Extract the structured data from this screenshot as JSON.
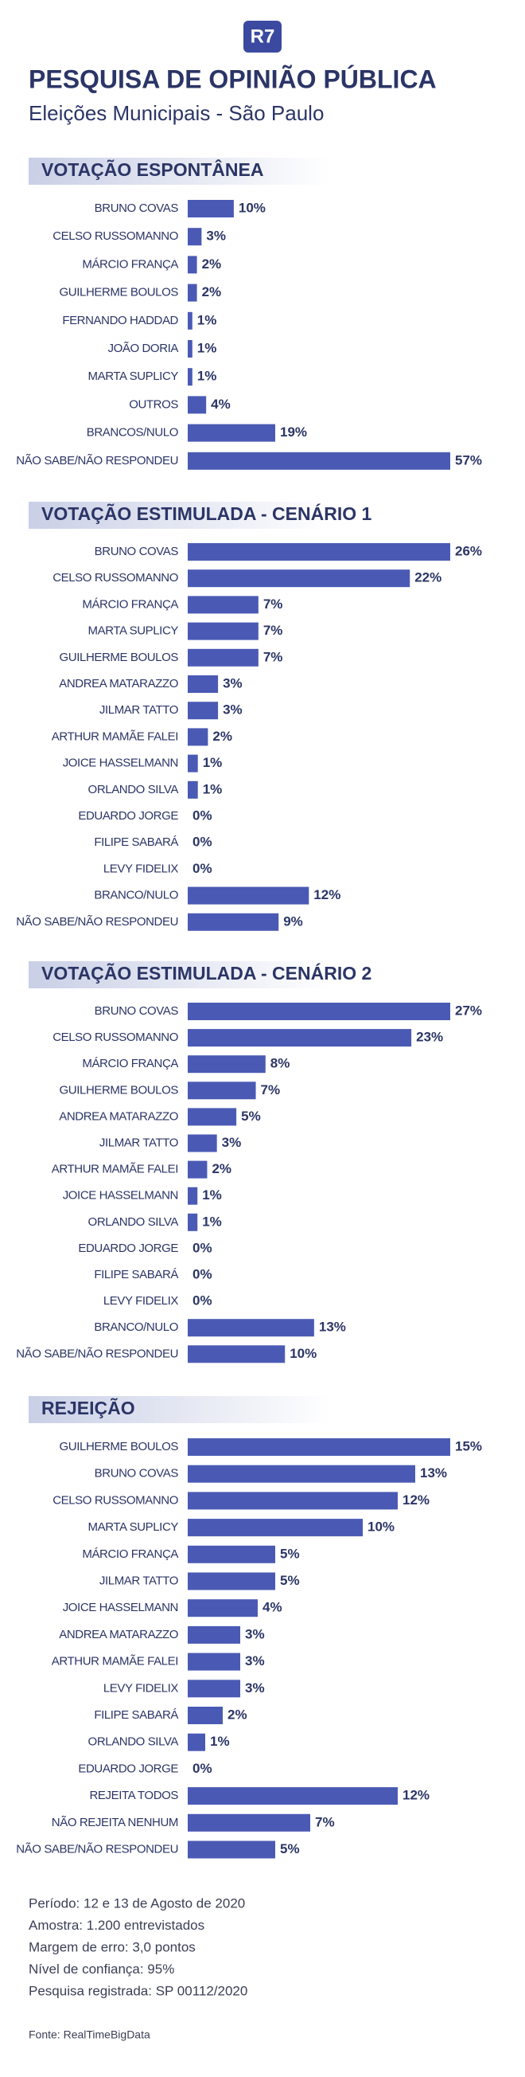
{
  "header": {
    "logo": "R7",
    "title": "PESQUISA DE OPINIÃO PÚBLICA",
    "subtitle": "Eleições Municipais - São Paulo"
  },
  "chart_data": [
    {
      "type": "bar",
      "orientation": "horizontal",
      "title": "VOTAÇÃO ESPONTÂNEA",
      "color": "#4a5ab4",
      "categories": [
        "BRUNO COVAS",
        "CELSO RUSSOMANNO",
        "MÁRCIO FRANÇA",
        "GUILHERME BOULOS",
        "FERNANDO HADDAD",
        "JOÃO DORIA",
        "MARTA SUPLICY",
        "OUTROS",
        "BRANCOS/NULO",
        "NÃO SABE/NÃO RESPONDEU"
      ],
      "values": [
        10,
        3,
        2,
        2,
        1,
        1,
        1,
        4,
        19,
        57
      ],
      "value_labels": [
        "10%",
        "3%",
        "2%",
        "2%",
        "1%",
        "1%",
        "1%",
        "4%",
        "19%",
        "57%"
      ]
    },
    {
      "type": "bar",
      "orientation": "horizontal",
      "title": "VOTAÇÃO ESTIMULADA - CENÁRIO 1",
      "color": "#4a5ab4",
      "categories": [
        "BRUNO COVAS",
        "CELSO RUSSOMANNO",
        "MÁRCIO FRANÇA",
        "MARTA SUPLICY",
        "GUILHERME BOULOS",
        "ANDREA MATARAZZO",
        "JILMAR TATTO",
        "ARTHUR MAMÃE FALEI",
        "JOICE HASSELMANN",
        "ORLANDO SILVA",
        "EDUARDO JORGE",
        "FILIPE SABARÁ",
        "LEVY FIDELIX",
        "BRANCO/NULO",
        "NÃO SABE/NÃO RESPONDEU"
      ],
      "values": [
        26,
        22,
        7,
        7,
        7,
        3,
        3,
        2,
        1,
        1,
        0,
        0,
        0,
        12,
        9
      ],
      "value_labels": [
        "26%",
        "22%",
        "7%",
        "7%",
        "7%",
        "3%",
        "3%",
        "2%",
        "1%",
        "1%",
        "0%",
        "0%",
        "0%",
        "12%",
        "9%"
      ]
    },
    {
      "type": "bar",
      "orientation": "horizontal",
      "title": "VOTAÇÃO ESTIMULADA - CENÁRIO 2",
      "color": "#4a5ab4",
      "categories": [
        "BRUNO COVAS",
        "CELSO RUSSOMANNO",
        "MÁRCIO FRANÇA",
        "GUILHERME BOULOS",
        "ANDREA MATARAZZO",
        "JILMAR TATTO",
        "ARTHUR MAMÃE FALEI",
        "JOICE HASSELMANN",
        "ORLANDO SILVA",
        "EDUARDO JORGE",
        "FILIPE SABARÁ",
        "LEVY FIDELIX",
        "BRANCO/NULO",
        "NÃO SABE/NÃO RESPONDEU"
      ],
      "values": [
        27,
        23,
        8,
        7,
        5,
        3,
        2,
        1,
        1,
        0,
        0,
        0,
        13,
        10
      ],
      "value_labels": [
        "27%",
        "23%",
        "8%",
        "7%",
        "5%",
        "3%",
        "2%",
        "1%",
        "1%",
        "0%",
        "0%",
        "0%",
        "13%",
        "10%"
      ]
    },
    {
      "type": "bar",
      "orientation": "horizontal",
      "title": "REJEIÇÃO",
      "color": "#4a5ab4",
      "categories": [
        "GUILHERME BOULOS",
        "BRUNO COVAS",
        "CELSO RUSSOMANNO",
        "MARTA SUPLICY",
        "MÁRCIO FRANÇA",
        "JILMAR TATTO",
        "JOICE HASSELMANN",
        "ANDREA MATARAZZO",
        "ARTHUR MAMÃE FALEI",
        "LEVY FIDELIX",
        "FILIPE SABARÁ",
        "ORLANDO SILVA",
        "EDUARDO JORGE",
        "REJEITA TODOS",
        "NÃO REJEITA NENHUM",
        "NÃO SABE/NÃO RESPONDEU"
      ],
      "values": [
        15,
        13,
        12,
        10,
        5,
        5,
        4,
        3,
        3,
        3,
        2,
        1,
        0,
        12,
        7,
        5
      ],
      "value_labels": [
        "15%",
        "13%",
        "12%",
        "10%",
        "5%",
        "5%",
        "4%",
        "3%",
        "3%",
        "3%",
        "2%",
        "1%",
        "0%",
        "12%",
        "7%",
        "5%"
      ]
    }
  ],
  "footer": {
    "notes": [
      "Período: 12 e 13 de Agosto de 2020",
      "Amostra: 1.200 entrevistados",
      "Margem de erro: 3,0 pontos",
      "Nível de confiança: 95%",
      "Pesquisa registrada: SP 00112/2020"
    ],
    "source": "Fonte: RealTimeBigData"
  }
}
